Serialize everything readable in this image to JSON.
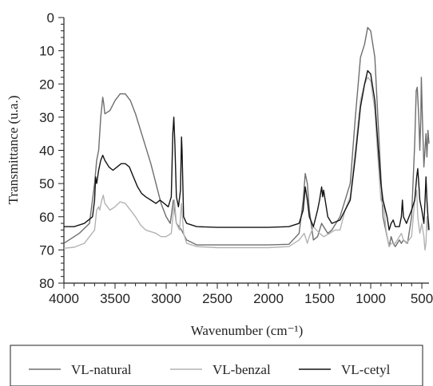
{
  "chart_data": {
    "type": "line",
    "title": "",
    "xlabel": "Wavenumber (cm⁻¹)",
    "ylabel": "Transmittance (u.a.)",
    "xlim": [
      4000,
      430
    ],
    "ylim": [
      80,
      0
    ],
    "x_ticks": [
      4000,
      3500,
      3000,
      2500,
      2000,
      1500,
      1000,
      500
    ],
    "y_ticks": [
      0,
      10,
      20,
      30,
      40,
      50,
      60,
      70,
      80
    ],
    "grid": false,
    "legend_position": "bottom",
    "series": [
      {
        "name": "VL-natural",
        "color": "#6e6e6e",
        "points": [
          [
            4000,
            68
          ],
          [
            3850,
            65
          ],
          [
            3750,
            62
          ],
          [
            3700,
            50
          ],
          [
            3680,
            43
          ],
          [
            3660,
            40
          ],
          [
            3640,
            30
          ],
          [
            3620,
            24
          ],
          [
            3610,
            26
          ],
          [
            3600,
            29
          ],
          [
            3550,
            28
          ],
          [
            3500,
            25
          ],
          [
            3450,
            23
          ],
          [
            3400,
            23
          ],
          [
            3350,
            25
          ],
          [
            3300,
            29
          ],
          [
            3250,
            34
          ],
          [
            3200,
            39
          ],
          [
            3150,
            44
          ],
          [
            3100,
            50
          ],
          [
            3050,
            56
          ],
          [
            3000,
            60
          ],
          [
            2960,
            62
          ],
          [
            2930,
            55
          ],
          [
            2900,
            62
          ],
          [
            2850,
            64
          ],
          [
            2800,
            67
          ],
          [
            2700,
            68.5
          ],
          [
            2500,
            68.5
          ],
          [
            2000,
            68.5
          ],
          [
            1800,
            68.3
          ],
          [
            1700,
            65
          ],
          [
            1660,
            55
          ],
          [
            1640,
            47
          ],
          [
            1620,
            50
          ],
          [
            1600,
            58
          ],
          [
            1560,
            67
          ],
          [
            1520,
            66
          ],
          [
            1480,
            62
          ],
          [
            1460,
            63
          ],
          [
            1420,
            65
          ],
          [
            1380,
            64
          ],
          [
            1300,
            60
          ],
          [
            1200,
            50
          ],
          [
            1150,
            30
          ],
          [
            1100,
            12
          ],
          [
            1060,
            8
          ],
          [
            1030,
            3
          ],
          [
            1000,
            4
          ],
          [
            960,
            12
          ],
          [
            930,
            30
          ],
          [
            900,
            48
          ],
          [
            880,
            60
          ],
          [
            840,
            66
          ],
          [
            820,
            69
          ],
          [
            800,
            66
          ],
          [
            780,
            68
          ],
          [
            760,
            69
          ],
          [
            720,
            67
          ],
          [
            700,
            68
          ],
          [
            680,
            67
          ],
          [
            640,
            68
          ],
          [
            600,
            60
          ],
          [
            570,
            38
          ],
          [
            555,
            22
          ],
          [
            545,
            21
          ],
          [
            530,
            30
          ],
          [
            520,
            40
          ],
          [
            510,
            30
          ],
          [
            505,
            18
          ],
          [
            495,
            30
          ],
          [
            480,
            45
          ],
          [
            470,
            40
          ],
          [
            460,
            35
          ],
          [
            450,
            42
          ],
          [
            440,
            34
          ],
          [
            430,
            38
          ]
        ]
      },
      {
        "name": "VL-benzal",
        "color": "#b3b3b3",
        "points": [
          [
            4000,
            69.5
          ],
          [
            3900,
            69.2
          ],
          [
            3800,
            68
          ],
          [
            3700,
            64
          ],
          [
            3680,
            58
          ],
          [
            3660,
            57
          ],
          [
            3650,
            58
          ],
          [
            3630,
            55
          ],
          [
            3615,
            53.5
          ],
          [
            3600,
            56
          ],
          [
            3550,
            58
          ],
          [
            3500,
            57
          ],
          [
            3450,
            55.5
          ],
          [
            3400,
            56
          ],
          [
            3350,
            58
          ],
          [
            3300,
            60
          ],
          [
            3250,
            62.5
          ],
          [
            3200,
            64
          ],
          [
            3100,
            65
          ],
          [
            3050,
            66
          ],
          [
            3000,
            66
          ],
          [
            2950,
            65
          ],
          [
            2920,
            55
          ],
          [
            2900,
            62
          ],
          [
            2870,
            64
          ],
          [
            2850,
            56
          ],
          [
            2830,
            65
          ],
          [
            2800,
            68
          ],
          [
            2700,
            69
          ],
          [
            2500,
            69.3
          ],
          [
            2000,
            69.3
          ],
          [
            1800,
            69
          ],
          [
            1700,
            67
          ],
          [
            1650,
            65
          ],
          [
            1620,
            68
          ],
          [
            1600,
            66
          ],
          [
            1560,
            63
          ],
          [
            1500,
            65
          ],
          [
            1460,
            66
          ],
          [
            1400,
            65
          ],
          [
            1350,
            64
          ],
          [
            1300,
            64
          ],
          [
            1250,
            58
          ],
          [
            1200,
            54
          ],
          [
            1150,
            40
          ],
          [
            1100,
            25
          ],
          [
            1060,
            20
          ],
          [
            1030,
            18
          ],
          [
            1000,
            19
          ],
          [
            960,
            28
          ],
          [
            930,
            42
          ],
          [
            900,
            55
          ],
          [
            870,
            57
          ],
          [
            850,
            64
          ],
          [
            820,
            69
          ],
          [
            800,
            68
          ],
          [
            760,
            68
          ],
          [
            700,
            65
          ],
          [
            680,
            67
          ],
          [
            650,
            68
          ],
          [
            600,
            66
          ],
          [
            570,
            55
          ],
          [
            550,
            52
          ],
          [
            540,
            60
          ],
          [
            520,
            65
          ],
          [
            500,
            62
          ],
          [
            480,
            66
          ],
          [
            470,
            70
          ],
          [
            460,
            68
          ],
          [
            450,
            60
          ],
          [
            440,
            64
          ],
          [
            430,
            62
          ]
        ]
      },
      {
        "name": "VL-cetyl",
        "color": "#141414",
        "points": [
          [
            4000,
            63
          ],
          [
            3900,
            63
          ],
          [
            3800,
            62
          ],
          [
            3720,
            60
          ],
          [
            3700,
            55
          ],
          [
            3690,
            48
          ],
          [
            3680,
            50
          ],
          [
            3660,
            46
          ],
          [
            3640,
            43
          ],
          [
            3620,
            41.5
          ],
          [
            3600,
            43
          ],
          [
            3560,
            45
          ],
          [
            3520,
            46
          ],
          [
            3480,
            45
          ],
          [
            3440,
            44
          ],
          [
            3400,
            44
          ],
          [
            3360,
            45
          ],
          [
            3320,
            48
          ],
          [
            3280,
            51
          ],
          [
            3240,
            53
          ],
          [
            3200,
            54
          ],
          [
            3150,
            55
          ],
          [
            3100,
            56
          ],
          [
            3060,
            55
          ],
          [
            3020,
            56
          ],
          [
            2980,
            57
          ],
          [
            2950,
            54
          ],
          [
            2935,
            35
          ],
          [
            2925,
            30
          ],
          [
            2915,
            38
          ],
          [
            2900,
            54
          ],
          [
            2880,
            57
          ],
          [
            2860,
            52
          ],
          [
            2850,
            36
          ],
          [
            2845,
            40
          ],
          [
            2830,
            60
          ],
          [
            2800,
            62
          ],
          [
            2700,
            63
          ],
          [
            2500,
            63.2
          ],
          [
            2000,
            63.2
          ],
          [
            1800,
            63
          ],
          [
            1700,
            62
          ],
          [
            1660,
            58
          ],
          [
            1640,
            51
          ],
          [
            1620,
            55
          ],
          [
            1600,
            60
          ],
          [
            1560,
            63
          ],
          [
            1520,
            58
          ],
          [
            1500,
            55
          ],
          [
            1480,
            51
          ],
          [
            1470,
            54
          ],
          [
            1460,
            52
          ],
          [
            1440,
            56
          ],
          [
            1420,
            60
          ],
          [
            1380,
            62
          ],
          [
            1300,
            61
          ],
          [
            1250,
            58
          ],
          [
            1200,
            55
          ],
          [
            1150,
            42
          ],
          [
            1100,
            27
          ],
          [
            1060,
            20
          ],
          [
            1030,
            16
          ],
          [
            1000,
            17
          ],
          [
            960,
            25
          ],
          [
            930,
            38
          ],
          [
            900,
            50
          ],
          [
            880,
            55
          ],
          [
            840,
            60
          ],
          [
            820,
            64
          ],
          [
            800,
            62
          ],
          [
            780,
            61
          ],
          [
            760,
            63
          ],
          [
            720,
            63
          ],
          [
            700,
            60
          ],
          [
            690,
            55
          ],
          [
            680,
            60
          ],
          [
            650,
            62
          ],
          [
            600,
            58
          ],
          [
            570,
            55
          ],
          [
            550,
            48
          ],
          [
            540,
            45.5
          ],
          [
            530,
            50
          ],
          [
            520,
            55
          ],
          [
            500,
            58
          ],
          [
            480,
            62
          ],
          [
            470,
            56
          ],
          [
            460,
            48
          ],
          [
            450,
            55
          ],
          [
            440,
            60
          ],
          [
            430,
            64
          ]
        ]
      }
    ]
  }
}
